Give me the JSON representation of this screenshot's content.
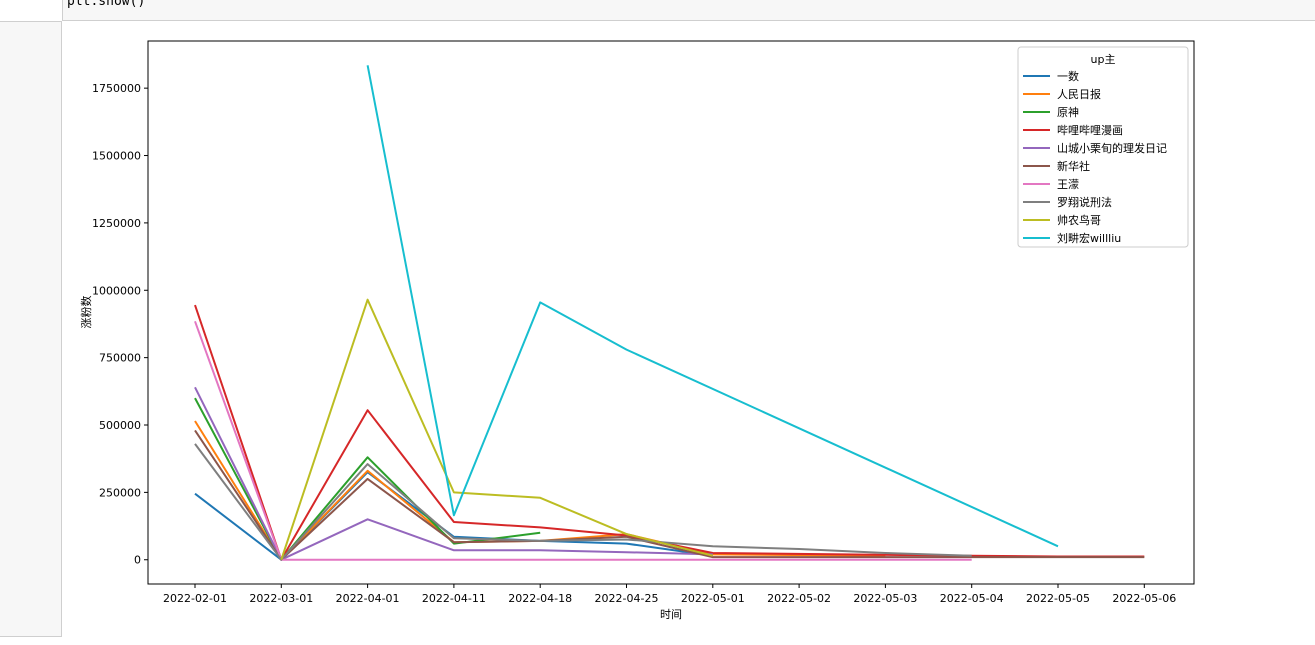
{
  "notebook": {
    "code_line": "plt.show()"
  },
  "chart_data": {
    "type": "line",
    "title": "",
    "xlabel": "时间",
    "ylabel": "涨粉数",
    "ylim": [
      -90000,
      1925000
    ],
    "yticks": [
      0,
      250000,
      500000,
      750000,
      1000000,
      1250000,
      1500000,
      1750000
    ],
    "ytick_labels": [
      "0",
      "250000",
      "500000",
      "750000",
      "1000000",
      "1250000",
      "1500000",
      "1750000"
    ],
    "categories": [
      "2022-02-01",
      "2022-03-01",
      "2022-04-01",
      "2022-04-11",
      "2022-04-18",
      "2022-04-25",
      "2022-05-01",
      "2022-05-02",
      "2022-05-03",
      "2022-05-04",
      "2022-05-05",
      "2022-05-06"
    ],
    "legend_title": "up主",
    "legend_position": "top-right",
    "grid": false,
    "series": [
      {
        "name": "一数",
        "color": "#1f77b4",
        "points": [
          [
            0,
            245000
          ],
          [
            1,
            0
          ],
          [
            2,
            325000
          ],
          [
            3,
            85000
          ],
          [
            4,
            70000
          ],
          [
            5,
            60000
          ],
          [
            6,
            15000
          ]
        ]
      },
      {
        "name": "人民日报",
        "color": "#ff7f0e",
        "points": [
          [
            0,
            515000
          ],
          [
            1,
            0
          ],
          [
            2,
            330000
          ],
          [
            3,
            65000
          ],
          [
            4,
            70000
          ],
          [
            5,
            95000
          ],
          [
            6,
            20000
          ],
          [
            8,
            15000
          ]
        ]
      },
      {
        "name": "原神",
        "color": "#2ca02c",
        "points": [
          [
            0,
            600000
          ],
          [
            1,
            0
          ],
          [
            2,
            380000
          ],
          [
            3,
            60000
          ],
          [
            4,
            100000
          ]
        ]
      },
      {
        "name": "哔哩哔哩漫画",
        "color": "#d62728",
        "points": [
          [
            0,
            945000
          ],
          [
            1,
            0
          ],
          [
            2,
            555000
          ],
          [
            3,
            140000
          ],
          [
            4,
            120000
          ],
          [
            5,
            90000
          ],
          [
            6,
            25000
          ],
          [
            9,
            15000
          ],
          [
            10,
            12000
          ],
          [
            11,
            12000
          ]
        ]
      },
      {
        "name": "山城小栗旬的理发日记",
        "color": "#9467bd",
        "points": [
          [
            0,
            640000
          ],
          [
            1,
            0
          ],
          [
            2,
            150000
          ],
          [
            3,
            35000
          ],
          [
            4,
            35000
          ],
          [
            5,
            28000
          ],
          [
            6,
            20000
          ]
        ]
      },
      {
        "name": "新华社",
        "color": "#8c564b",
        "points": [
          [
            0,
            480000
          ],
          [
            1,
            0
          ],
          [
            2,
            300000
          ],
          [
            3,
            65000
          ],
          [
            4,
            70000
          ],
          [
            5,
            85000
          ],
          [
            6,
            10000
          ],
          [
            8,
            10000
          ],
          [
            9,
            10000
          ],
          [
            10,
            10000
          ],
          [
            11,
            10000
          ]
        ]
      },
      {
        "name": "王濛",
        "color": "#e377c2",
        "points": [
          [
            0,
            885000
          ],
          [
            1,
            0
          ],
          [
            2,
            0
          ],
          [
            3,
            0
          ],
          [
            4,
            0
          ],
          [
            5,
            0
          ],
          [
            6,
            0
          ],
          [
            7,
            0
          ],
          [
            8,
            0
          ],
          [
            9,
            0
          ]
        ]
      },
      {
        "name": "罗翔说刑法",
        "color": "#7f7f7f",
        "points": [
          [
            0,
            430000
          ],
          [
            1,
            0
          ],
          [
            2,
            355000
          ],
          [
            3,
            80000
          ],
          [
            4,
            70000
          ],
          [
            5,
            75000
          ],
          [
            6,
            50000
          ],
          [
            7,
            40000
          ],
          [
            8,
            25000
          ],
          [
            9,
            15000
          ]
        ]
      },
      {
        "name": "帅农鸟哥",
        "color": "#bcbd22",
        "points": [
          [
            1,
            0
          ],
          [
            2,
            965000
          ],
          [
            3,
            250000
          ],
          [
            4,
            230000
          ],
          [
            5,
            95000
          ],
          [
            6,
            15000
          ]
        ]
      },
      {
        "name": "刘畊宏willliu",
        "color": "#17becf",
        "points": [
          [
            2,
            1835000
          ],
          [
            3,
            165000
          ],
          [
            4,
            955000
          ],
          [
            5,
            780000
          ],
          [
            10,
            50000
          ]
        ]
      }
    ]
  }
}
